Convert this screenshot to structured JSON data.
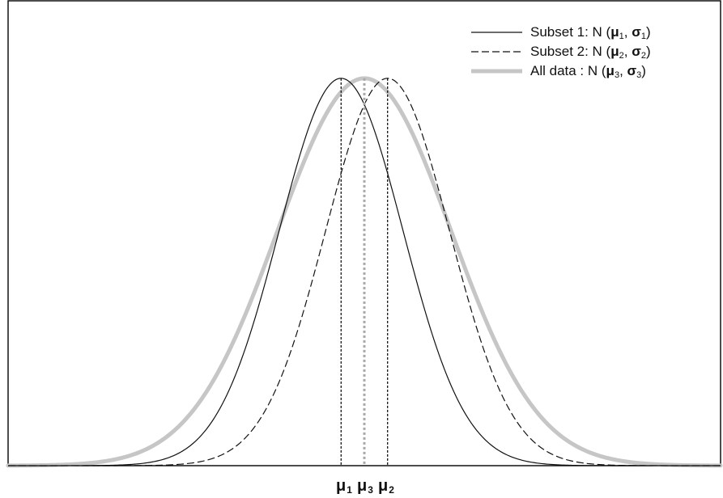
{
  "chart_data": {
    "type": "line",
    "title": "",
    "xlabel": "",
    "ylabel": "",
    "xlim": [
      -4.6,
      4.6
    ],
    "ylim": [
      0,
      1.2
    ],
    "grid": false,
    "legend_position": "top-right",
    "series": [
      {
        "name": "Subset 1: N (μ1, σ1)",
        "legend": {
          "prefix": "Subset 1: N (",
          "mu": "μ",
          "mu_sub": "1",
          "sep": ", ",
          "sigma": "σ",
          "sigma_sub": "1",
          "suffix": ")"
        },
        "distribution": "normal",
        "mean": -0.3,
        "sd": 0.8,
        "peak": 1.0,
        "style": "solid",
        "color": "#111111"
      },
      {
        "name": "Subset 2: N (μ2, σ2)",
        "legend": {
          "prefix": "Subset 2: N (",
          "mu": "μ",
          "mu_sub": "2",
          "sep": ", ",
          "sigma": "σ",
          "sigma_sub": "2",
          "suffix": ")"
        },
        "distribution": "normal",
        "mean": 0.3,
        "sd": 0.8,
        "peak": 1.0,
        "style": "dashed",
        "color": "#111111"
      },
      {
        "name": "All data : N (μ3, σ3)",
        "legend": {
          "prefix": "All data : N (",
          "mu": "μ",
          "mu_sub": "3",
          "sep": ", ",
          "sigma": "σ",
          "sigma_sub": "3",
          "suffix": ")"
        },
        "distribution": "normal",
        "mean": 0.0,
        "sd": 1.12,
        "peak": 1.0,
        "style": "thick",
        "color": "#c6c6c6"
      }
    ],
    "mean_markers": [
      {
        "label": "μ",
        "sub": "1",
        "x": -0.3,
        "style": "dotted",
        "color": "#111111"
      },
      {
        "label": "μ",
        "sub": "3",
        "x": 0.0,
        "style": "dotted-gray",
        "color": "#a8a8a8"
      },
      {
        "label": "μ",
        "sub": "2",
        "x": 0.3,
        "style": "dotted",
        "color": "#111111"
      }
    ]
  }
}
